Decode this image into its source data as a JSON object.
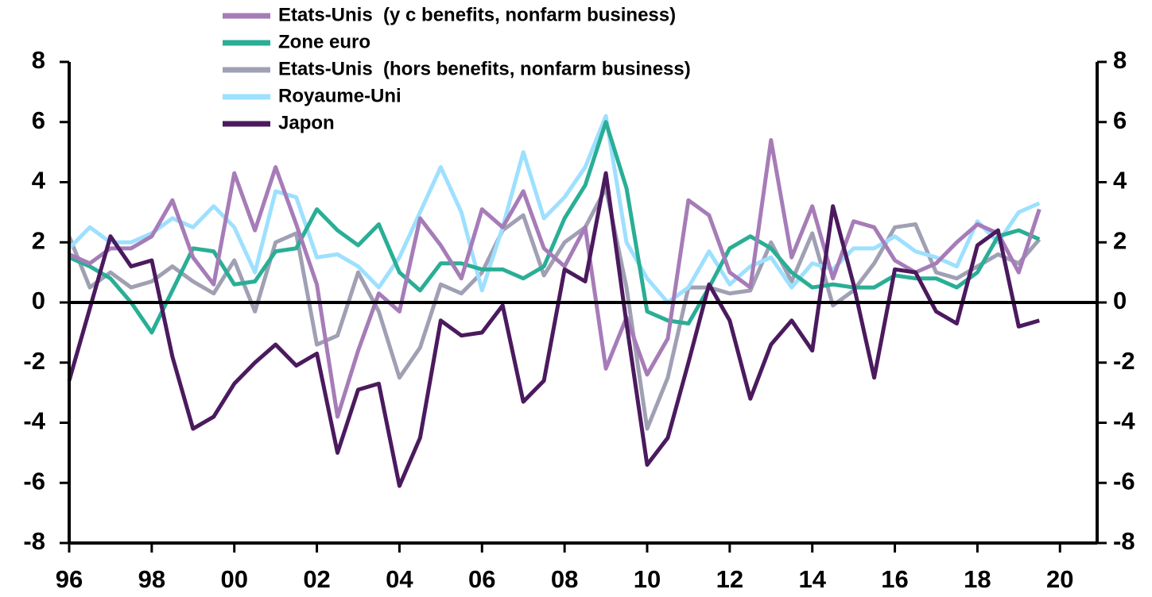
{
  "chart_data": {
    "type": "line",
    "x": [
      1996,
      1996.5,
      1997,
      1997.5,
      1998,
      1998.5,
      1999,
      1999.5,
      2000,
      2000.5,
      2001,
      2001.5,
      2002,
      2002.5,
      2003,
      2003.5,
      2004,
      2004.5,
      2005,
      2005.5,
      2006,
      2006.5,
      2007,
      2007.5,
      2008,
      2008.5,
      2009,
      2009.5,
      2010,
      2010.5,
      2011,
      2011.5,
      2012,
      2012.5,
      2013,
      2013.5,
      2014,
      2014.5,
      2015,
      2015.5,
      2016,
      2016.5,
      2017,
      2017.5,
      2018,
      2018.5,
      2019,
      2019.5
    ],
    "series": [
      {
        "name": "Etats-Unis  (y c benefits, nonfarm business)",
        "color": "#a67cb8",
        "values": [
          1.6,
          1.3,
          1.8,
          1.8,
          2.2,
          3.4,
          1.5,
          0.6,
          4.3,
          2.4,
          4.5,
          2.6,
          0.6,
          -3.8,
          -1.6,
          0.3,
          -0.3,
          2.8,
          1.9,
          0.8,
          3.1,
          2.5,
          3.7,
          1.8,
          1.2,
          2.5,
          -2.2,
          -0.5,
          -2.4,
          -1.2,
          3.4,
          2.9,
          1.0,
          0.5,
          5.4,
          1.5,
          3.2,
          0.8,
          2.7,
          2.5,
          1.4,
          1.0,
          1.3,
          2.0,
          2.6,
          2.3,
          1.0,
          3.1
        ]
      },
      {
        "name": "Zone euro",
        "color": "#2aae96",
        "values": [
          1.5,
          1.2,
          0.8,
          0.0,
          -1.0,
          0.4,
          1.8,
          1.7,
          0.6,
          0.7,
          1.7,
          1.8,
          3.1,
          2.4,
          1.9,
          2.6,
          1.0,
          0.4,
          1.3,
          1.3,
          1.1,
          1.1,
          0.8,
          1.2,
          2.8,
          3.9,
          6.0,
          3.8,
          -0.3,
          -0.6,
          -0.7,
          0.5,
          1.8,
          2.2,
          1.8,
          1.0,
          0.5,
          0.6,
          0.5,
          0.5,
          0.9,
          0.8,
          0.8,
          0.5,
          1.0,
          2.2,
          2.4,
          2.1
        ]
      },
      {
        "name": "Etats-Unis  (hors benefits, nonfarm business)",
        "color": "#a0a0b4",
        "values": [
          2.2,
          0.5,
          1.0,
          0.5,
          0.7,
          1.2,
          0.7,
          0.3,
          1.4,
          -0.3,
          2.0,
          2.3,
          -1.4,
          -1.1,
          1.0,
          -0.3,
          -2.5,
          -1.5,
          0.6,
          0.3,
          1.0,
          2.4,
          2.9,
          0.9,
          2.0,
          2.5,
          3.8,
          0.5,
          -4.2,
          -2.5,
          0.5,
          0.5,
          0.3,
          0.4,
          2.0,
          0.7,
          2.3,
          -0.1,
          0.4,
          1.3,
          2.5,
          2.6,
          1.0,
          0.8,
          1.2,
          1.6,
          1.3,
          2.1
        ]
      },
      {
        "name": "Royaume-Uni",
        "color": "#9de0ff",
        "values": [
          1.8,
          2.5,
          2.0,
          2.0,
          2.3,
          2.8,
          2.5,
          3.2,
          2.5,
          1.0,
          3.7,
          3.5,
          1.5,
          1.6,
          1.2,
          0.5,
          1.5,
          3.0,
          4.5,
          3.0,
          0.4,
          2.5,
          5.0,
          2.8,
          3.5,
          4.5,
          6.2,
          2.0,
          0.8,
          0.0,
          0.5,
          1.7,
          0.6,
          1.2,
          1.5,
          0.5,
          1.3,
          1.1,
          1.8,
          1.8,
          2.2,
          1.7,
          1.5,
          1.2,
          2.7,
          2.0,
          3.0,
          3.3
        ]
      },
      {
        "name": "Japon",
        "color": "#4b1a5e",
        "values": [
          -2.6,
          -0.2,
          2.2,
          1.2,
          1.4,
          -1.8,
          -4.2,
          -3.8,
          -2.7,
          -2.0,
          -1.4,
          -2.1,
          -1.7,
          -5.0,
          -2.9,
          -2.7,
          -6.1,
          -4.5,
          -0.6,
          -1.1,
          -1.0,
          -0.1,
          -3.3,
          -2.6,
          1.1,
          0.7,
          4.3,
          -0.7,
          -5.4,
          -4.5,
          -2.0,
          0.6,
          -0.6,
          -3.2,
          -1.4,
          -0.6,
          -1.6,
          3.2,
          0.6,
          -2.5,
          1.1,
          1.0,
          -0.3,
          -0.7,
          1.9,
          2.4,
          -0.8,
          -0.6
        ]
      }
    ],
    "xlim": [
      1996,
      2020.9
    ],
    "xticks": [
      {
        "value": 1996,
        "label": "96"
      },
      {
        "value": 1998,
        "label": "98"
      },
      {
        "value": 2000,
        "label": "00"
      },
      {
        "value": 2002,
        "label": "02"
      },
      {
        "value": 2004,
        "label": "04"
      },
      {
        "value": 2006,
        "label": "06"
      },
      {
        "value": 2008,
        "label": "08"
      },
      {
        "value": 2010,
        "label": "10"
      },
      {
        "value": 2012,
        "label": "12"
      },
      {
        "value": 2014,
        "label": "14"
      },
      {
        "value": 2016,
        "label": "16"
      },
      {
        "value": 2018,
        "label": "18"
      },
      {
        "value": 2020,
        "label": "20"
      }
    ],
    "ylim": [
      -8,
      8
    ],
    "yticks": [
      -8,
      -6,
      -4,
      -2,
      0,
      2,
      4,
      6,
      8
    ],
    "legend": "top"
  }
}
